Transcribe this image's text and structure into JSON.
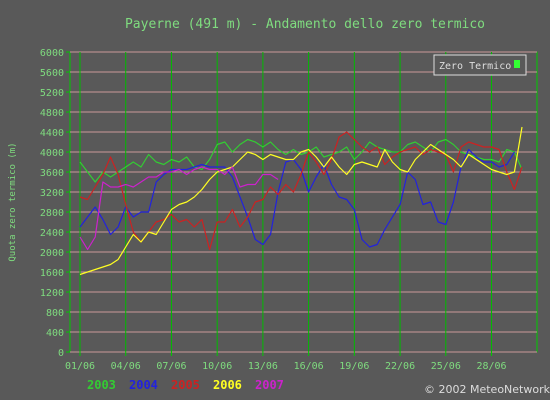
{
  "chart_data": {
    "type": "line",
    "title": "Payerne (491 m) - Andamento dello zero termico",
    "ylabel": "Quota zero termico (m)",
    "xlabel": "",
    "ylim": [
      0,
      6000
    ],
    "yticks": [
      0,
      400,
      800,
      1200,
      1600,
      2000,
      2400,
      2800,
      3200,
      3600,
      4000,
      4400,
      4800,
      5200,
      5600,
      6000
    ],
    "xlim": [
      1,
      30
    ],
    "xticks": [
      {
        "x": 1,
        "label": "01/06"
      },
      {
        "x": 4,
        "label": "04/06"
      },
      {
        "x": 7,
        "label": "07/06"
      },
      {
        "x": 10,
        "label": "10/06"
      },
      {
        "x": 13,
        "label": "13/06"
      },
      {
        "x": 16,
        "label": "16/06"
      },
      {
        "x": 19,
        "label": "19/06"
      },
      {
        "x": 22,
        "label": "22/06"
      },
      {
        "x": 25,
        "label": "25/06"
      },
      {
        "x": 28,
        "label": "28/06"
      }
    ],
    "grid": true,
    "legend_box": {
      "label": "Zero Termico",
      "position": "top-right",
      "color": "#33ff33"
    },
    "series": [
      {
        "name": "2003",
        "color": "#33cc33",
        "points": [
          [
            1,
            3800
          ],
          [
            1.5,
            3600
          ],
          [
            2,
            3400
          ],
          [
            2.5,
            3600
          ],
          [
            3,
            3500
          ],
          [
            3.5,
            3600
          ],
          [
            4,
            3700
          ],
          [
            4.5,
            3800
          ],
          [
            5,
            3700
          ],
          [
            5.5,
            3950
          ],
          [
            6,
            3800
          ],
          [
            6.5,
            3750
          ],
          [
            7,
            3850
          ],
          [
            7.5,
            3800
          ],
          [
            8,
            3900
          ],
          [
            8.5,
            3700
          ],
          [
            9,
            3650
          ],
          [
            9.5,
            3850
          ],
          [
            10,
            4150
          ],
          [
            10.5,
            4200
          ],
          [
            11,
            4000
          ],
          [
            11.5,
            4150
          ],
          [
            12,
            4250
          ],
          [
            12.5,
            4200
          ],
          [
            13,
            4100
          ],
          [
            13.5,
            4200
          ],
          [
            14,
            4050
          ],
          [
            14.5,
            3950
          ],
          [
            15,
            4050
          ],
          [
            15.5,
            3950
          ],
          [
            16,
            4000
          ],
          [
            16.5,
            4100
          ],
          [
            17,
            3900
          ],
          [
            17.5,
            3950
          ],
          [
            18,
            4000
          ],
          [
            18.5,
            4100
          ],
          [
            19,
            3850
          ],
          [
            19.5,
            4000
          ],
          [
            20,
            4200
          ],
          [
            20.5,
            4100
          ],
          [
            21,
            4050
          ],
          [
            21.5,
            4000
          ],
          [
            22,
            4000
          ],
          [
            22.5,
            4150
          ],
          [
            23,
            4200
          ],
          [
            23.5,
            4100
          ],
          [
            24,
            4000
          ],
          [
            24.5,
            4200
          ],
          [
            25,
            4250
          ],
          [
            25.5,
            4150
          ],
          [
            26,
            4000
          ],
          [
            26.5,
            3950
          ],
          [
            27,
            3900
          ],
          [
            27.5,
            3850
          ],
          [
            28,
            3850
          ],
          [
            28.5,
            3800
          ],
          [
            29,
            4050
          ],
          [
            29.5,
            4000
          ],
          [
            30,
            3650
          ]
        ]
      },
      {
        "name": "2004",
        "color": "#2222dd",
        "points": [
          [
            1,
            2500
          ],
          [
            1.5,
            2700
          ],
          [
            2,
            2900
          ],
          [
            2.5,
            2650
          ],
          [
            3,
            2350
          ],
          [
            3.5,
            2500
          ],
          [
            4,
            2900
          ],
          [
            4.5,
            2700
          ],
          [
            5,
            2800
          ],
          [
            5.5,
            2800
          ],
          [
            6,
            3400
          ],
          [
            6.5,
            3550
          ],
          [
            7,
            3650
          ],
          [
            7.5,
            3650
          ],
          [
            8,
            3650
          ],
          [
            8.5,
            3700
          ],
          [
            9,
            3750
          ],
          [
            9.5,
            3700
          ],
          [
            10,
            3700
          ],
          [
            10.5,
            3700
          ],
          [
            11,
            3500
          ],
          [
            11.5,
            3100
          ],
          [
            12,
            2700
          ],
          [
            12.5,
            2250
          ],
          [
            13,
            2150
          ],
          [
            13.5,
            2350
          ],
          [
            14,
            3200
          ],
          [
            14.5,
            3800
          ],
          [
            15,
            3850
          ],
          [
            15.5,
            3650
          ],
          [
            16,
            3200
          ],
          [
            16.5,
            3500
          ],
          [
            17,
            3750
          ],
          [
            17.5,
            3350
          ],
          [
            18,
            3100
          ],
          [
            18.5,
            3050
          ],
          [
            19,
            2850
          ],
          [
            19.5,
            2250
          ],
          [
            20,
            2100
          ],
          [
            20.5,
            2150
          ],
          [
            21,
            2450
          ],
          [
            21.5,
            2700
          ],
          [
            22,
            2950
          ],
          [
            22.5,
            3600
          ],
          [
            23,
            3450
          ],
          [
            23.5,
            2950
          ],
          [
            24,
            3000
          ],
          [
            24.5,
            2600
          ],
          [
            25,
            2550
          ],
          [
            25.5,
            3000
          ],
          [
            26,
            3700
          ],
          [
            26.5,
            4050
          ],
          [
            27,
            3900
          ],
          [
            27.5,
            3800
          ],
          [
            28,
            3800
          ],
          [
            28.5,
            3700
          ],
          [
            29,
            3750
          ],
          [
            29.5,
            4000
          ]
        ]
      },
      {
        "name": "2005",
        "color": "#cc2222",
        "points": [
          [
            1,
            3100
          ],
          [
            1.5,
            3050
          ],
          [
            2,
            3300
          ],
          [
            2.5,
            3550
          ],
          [
            3,
            3900
          ],
          [
            3.5,
            3550
          ],
          [
            4,
            2950
          ],
          [
            4.5,
            2400
          ],
          [
            5,
            2200
          ],
          [
            5.5,
            2400
          ],
          [
            6,
            2600
          ],
          [
            6.5,
            2650
          ],
          [
            7,
            2750
          ],
          [
            7.5,
            2600
          ],
          [
            8,
            2650
          ],
          [
            8.5,
            2500
          ],
          [
            9,
            2650
          ],
          [
            9.5,
            2050
          ],
          [
            10,
            2600
          ],
          [
            10.5,
            2600
          ],
          [
            11,
            2850
          ],
          [
            11.5,
            2500
          ],
          [
            12,
            2700
          ],
          [
            12.5,
            3000
          ],
          [
            13,
            3050
          ],
          [
            13.5,
            3300
          ],
          [
            14,
            3150
          ],
          [
            14.5,
            3350
          ],
          [
            15,
            3200
          ],
          [
            15.5,
            3550
          ],
          [
            16,
            4000
          ],
          [
            16.5,
            3800
          ],
          [
            17,
            3550
          ],
          [
            17.5,
            3850
          ],
          [
            18,
            4300
          ],
          [
            18.5,
            4400
          ],
          [
            19,
            4250
          ],
          [
            19.5,
            4100
          ],
          [
            20,
            4000
          ],
          [
            20.5,
            4100
          ],
          [
            21,
            3750
          ],
          [
            21.5,
            3900
          ],
          [
            22,
            4000
          ],
          [
            22.5,
            4050
          ],
          [
            23,
            4100
          ],
          [
            23.5,
            3950
          ],
          [
            24,
            4050
          ],
          [
            24.5,
            4000
          ],
          [
            25,
            3950
          ],
          [
            25.5,
            3600
          ],
          [
            26,
            4100
          ],
          [
            26.5,
            4200
          ],
          [
            27,
            4150
          ],
          [
            27.5,
            4100
          ],
          [
            28,
            4100
          ],
          [
            28.5,
            4050
          ],
          [
            29,
            3600
          ],
          [
            29.5,
            3250
          ],
          [
            30,
            3700
          ]
        ]
      },
      {
        "name": "2006",
        "color": "#ffff22",
        "points": [
          [
            1,
            1550
          ],
          [
            1.5,
            1600
          ],
          [
            2,
            1650
          ],
          [
            2.5,
            1700
          ],
          [
            3,
            1750
          ],
          [
            3.5,
            1850
          ],
          [
            4,
            2100
          ],
          [
            4.5,
            2350
          ],
          [
            5,
            2200
          ],
          [
            5.5,
            2400
          ],
          [
            6,
            2350
          ],
          [
            6.5,
            2600
          ],
          [
            7,
            2850
          ],
          [
            7.5,
            2950
          ],
          [
            8,
            3000
          ],
          [
            8.5,
            3100
          ],
          [
            9,
            3250
          ],
          [
            9.5,
            3450
          ],
          [
            10,
            3600
          ],
          [
            10.5,
            3650
          ],
          [
            11,
            3700
          ],
          [
            11.5,
            3850
          ],
          [
            12,
            4000
          ],
          [
            12.5,
            3950
          ],
          [
            13,
            3850
          ],
          [
            13.5,
            3950
          ],
          [
            14,
            3900
          ],
          [
            14.5,
            3850
          ],
          [
            15,
            3850
          ],
          [
            15.5,
            4000
          ],
          [
            16,
            4050
          ],
          [
            16.5,
            3900
          ],
          [
            17,
            3700
          ],
          [
            17.5,
            3900
          ],
          [
            18,
            3700
          ],
          [
            18.5,
            3550
          ],
          [
            19,
            3750
          ],
          [
            19.5,
            3800
          ],
          [
            20,
            3750
          ],
          [
            20.5,
            3700
          ],
          [
            21,
            4050
          ],
          [
            21.5,
            3800
          ],
          [
            22,
            3650
          ],
          [
            22.5,
            3600
          ],
          [
            23,
            3850
          ],
          [
            23.5,
            4000
          ],
          [
            24,
            4150
          ],
          [
            24.5,
            4050
          ],
          [
            25,
            3950
          ],
          [
            25.5,
            3850
          ],
          [
            26,
            3700
          ],
          [
            26.5,
            3950
          ],
          [
            27,
            3850
          ],
          [
            27.5,
            3750
          ],
          [
            28,
            3650
          ],
          [
            28.5,
            3600
          ],
          [
            29,
            3550
          ],
          [
            29.5,
            3600
          ],
          [
            30,
            4500
          ]
        ]
      },
      {
        "name": "2007",
        "color": "#cc22cc",
        "points": [
          [
            1,
            2300
          ],
          [
            1.5,
            2050
          ],
          [
            2,
            2300
          ],
          [
            2.5,
            3400
          ],
          [
            3,
            3300
          ],
          [
            3.5,
            3300
          ],
          [
            4,
            3350
          ],
          [
            4.5,
            3300
          ],
          [
            5,
            3400
          ],
          [
            5.5,
            3500
          ],
          [
            6,
            3500
          ],
          [
            6.5,
            3600
          ],
          [
            7,
            3600
          ],
          [
            7.5,
            3650
          ],
          [
            8,
            3550
          ],
          [
            8.5,
            3650
          ],
          [
            9,
            3700
          ],
          [
            9.5,
            3650
          ],
          [
            10,
            3650
          ],
          [
            10.5,
            3550
          ],
          [
            11,
            3700
          ],
          [
            11.5,
            3300
          ],
          [
            12,
            3350
          ],
          [
            12.5,
            3350
          ],
          [
            13,
            3550
          ],
          [
            13.5,
            3550
          ],
          [
            14,
            3450
          ]
        ]
      }
    ],
    "watermark": "© 2002 MeteoNetwork"
  }
}
